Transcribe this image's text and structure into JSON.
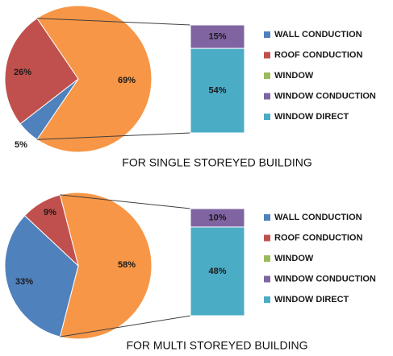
{
  "chart_data": [
    {
      "type": "pie",
      "caption": "FOR SINGLE STOREYED BUILDING",
      "pie": [
        {
          "name": "WINDOW",
          "value": 69,
          "label": "69%"
        },
        {
          "name": "WALL CONDUCTION",
          "value": 5,
          "label": "5%"
        },
        {
          "name": "ROOF CONDUCTION",
          "value": 26,
          "label": "26%"
        }
      ],
      "breakdown": [
        {
          "name": "WINDOW CONDUCTION",
          "value": 15,
          "label": "15%"
        },
        {
          "name": "WINDOW DIRECT",
          "value": 54,
          "label": "54%"
        }
      ],
      "legend": [
        "WALL CONDUCTION",
        "ROOF CONDUCTION",
        "WINDOW",
        "WINDOW CONDUCTION",
        "WINDOW DIRECT"
      ],
      "legend_position": "right"
    },
    {
      "type": "pie",
      "caption": "FOR MULTI STOREYED BUILDING",
      "pie": [
        {
          "name": "WINDOW",
          "value": 58,
          "label": "58%"
        },
        {
          "name": "WALL CONDUCTION",
          "value": 33,
          "label": "33%"
        },
        {
          "name": "ROOF CONDUCTION",
          "value": 9,
          "label": "9%"
        }
      ],
      "breakdown": [
        {
          "name": "WINDOW CONDUCTION",
          "value": 10,
          "label": "10%"
        },
        {
          "name": "WINDOW DIRECT",
          "value": 48,
          "label": "48%"
        }
      ],
      "legend": [
        "WALL CONDUCTION",
        "ROOF CONDUCTION",
        "WINDOW",
        "WINDOW CONDUCTION",
        "WINDOW DIRECT"
      ],
      "legend_position": "right"
    }
  ],
  "colors": {
    "WALL CONDUCTION": "#4F81BD",
    "ROOF CONDUCTION": "#C0504D",
    "WINDOW": "#F79646",
    "WINDOW CONDUCTION": "#8064A2",
    "WINDOW DIRECT": "#4BACC6",
    "WINDOW_legend": "#9BBB59"
  }
}
